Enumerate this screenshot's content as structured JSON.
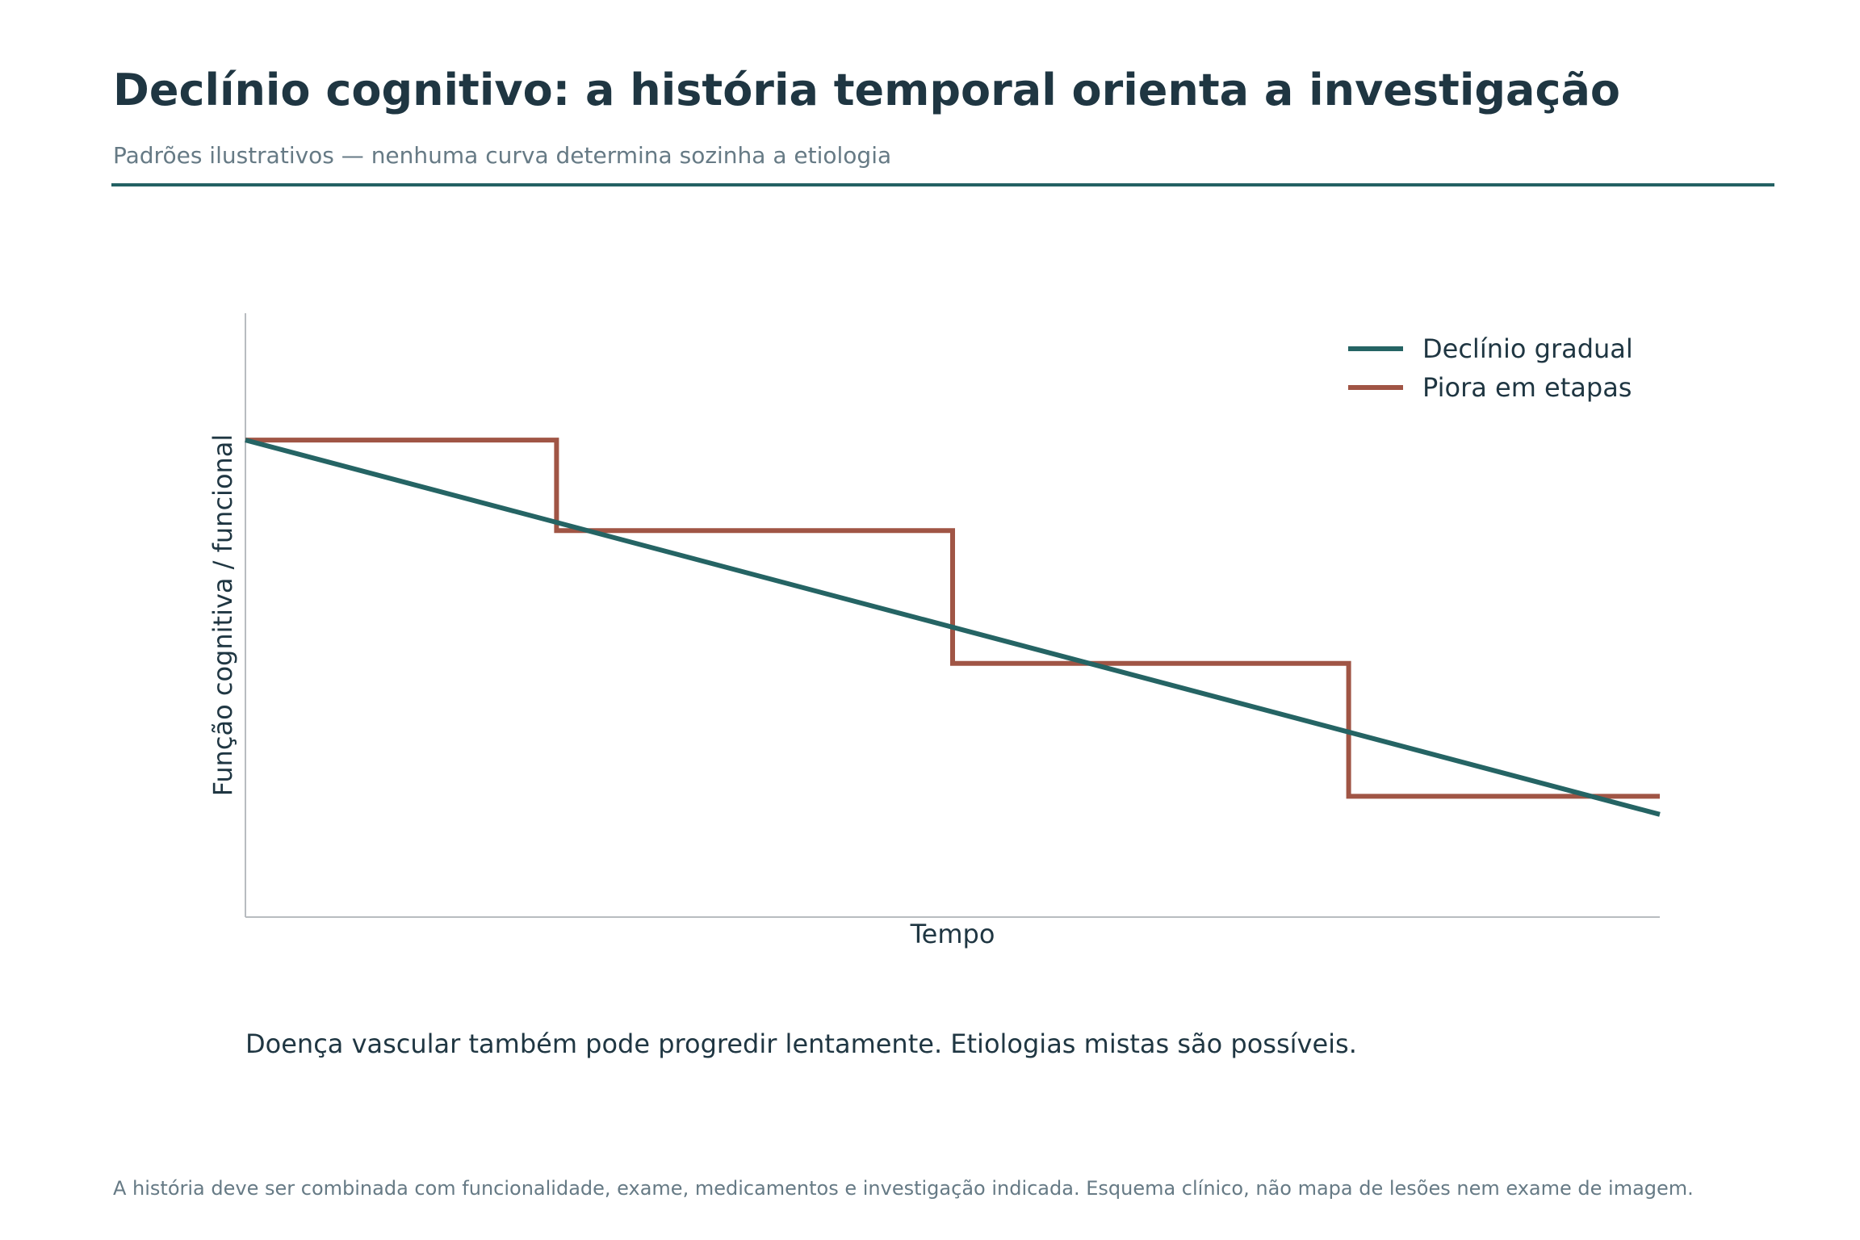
{
  "header": {
    "title": "Declínio cognitivo: a história temporal orienta a investigação",
    "subtitle": "Padrões ilustrativos — nenhuma curva determina sozinha a etiologia"
  },
  "chart_data": {
    "type": "line",
    "title": "",
    "xlabel": "Tempo",
    "ylabel": "Função cognitiva / funcional",
    "xlim": [
      0,
      10
    ],
    "ylim": [
      0,
      10
    ],
    "grid": false,
    "legend_position": "top-right",
    "series": [
      {
        "name": "Declínio gradual",
        "color": "#256464",
        "step": false,
        "x": [
          0,
          10
        ],
        "y": [
          7.9,
          1.7
        ]
      },
      {
        "name": "Piora em etapas",
        "color": "#a05545",
        "step": true,
        "x": [
          0,
          2.2,
          2.2,
          5.0,
          5.0,
          7.8,
          7.8,
          10
        ],
        "y": [
          7.9,
          7.9,
          6.4,
          6.4,
          4.2,
          4.2,
          2.0,
          2.0
        ]
      }
    ]
  },
  "note": "Doença vascular também pode progredir lentamente. Etiologias mistas são possíveis.",
  "footer": "A história deve ser combinada com funcionalidade, exame, medicamentos e investigação indicada. Esquema clínico, não mapa de lesões nem exame de imagem."
}
